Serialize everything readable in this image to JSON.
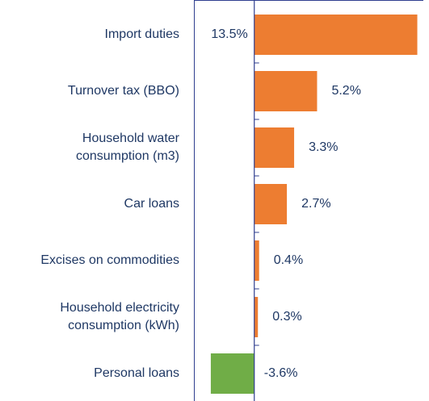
{
  "chart_data": {
    "type": "bar",
    "orientation": "horizontal",
    "categories": [
      "Import duties",
      "Turnover tax (BBO)",
      "Household water\nconsumption (m3)",
      "Car loans",
      "Excises on commodities",
      "Household electricity\nconsumption (kWh)",
      "Personal loans"
    ],
    "values": [
      13.5,
      5.2,
      3.3,
      2.7,
      0.4,
      0.3,
      -3.6
    ],
    "value_labels": [
      "13.5%",
      "5.2%",
      "3.3%",
      "2.7%",
      "0.4%",
      "0.3%",
      "-3.6%"
    ],
    "colors": [
      "#ed7d31",
      "#ed7d31",
      "#ed7d31",
      "#ed7d31",
      "#ed7d31",
      "#ed7d31",
      "#70ad47"
    ],
    "xlim": [
      -5,
      14
    ]
  }
}
